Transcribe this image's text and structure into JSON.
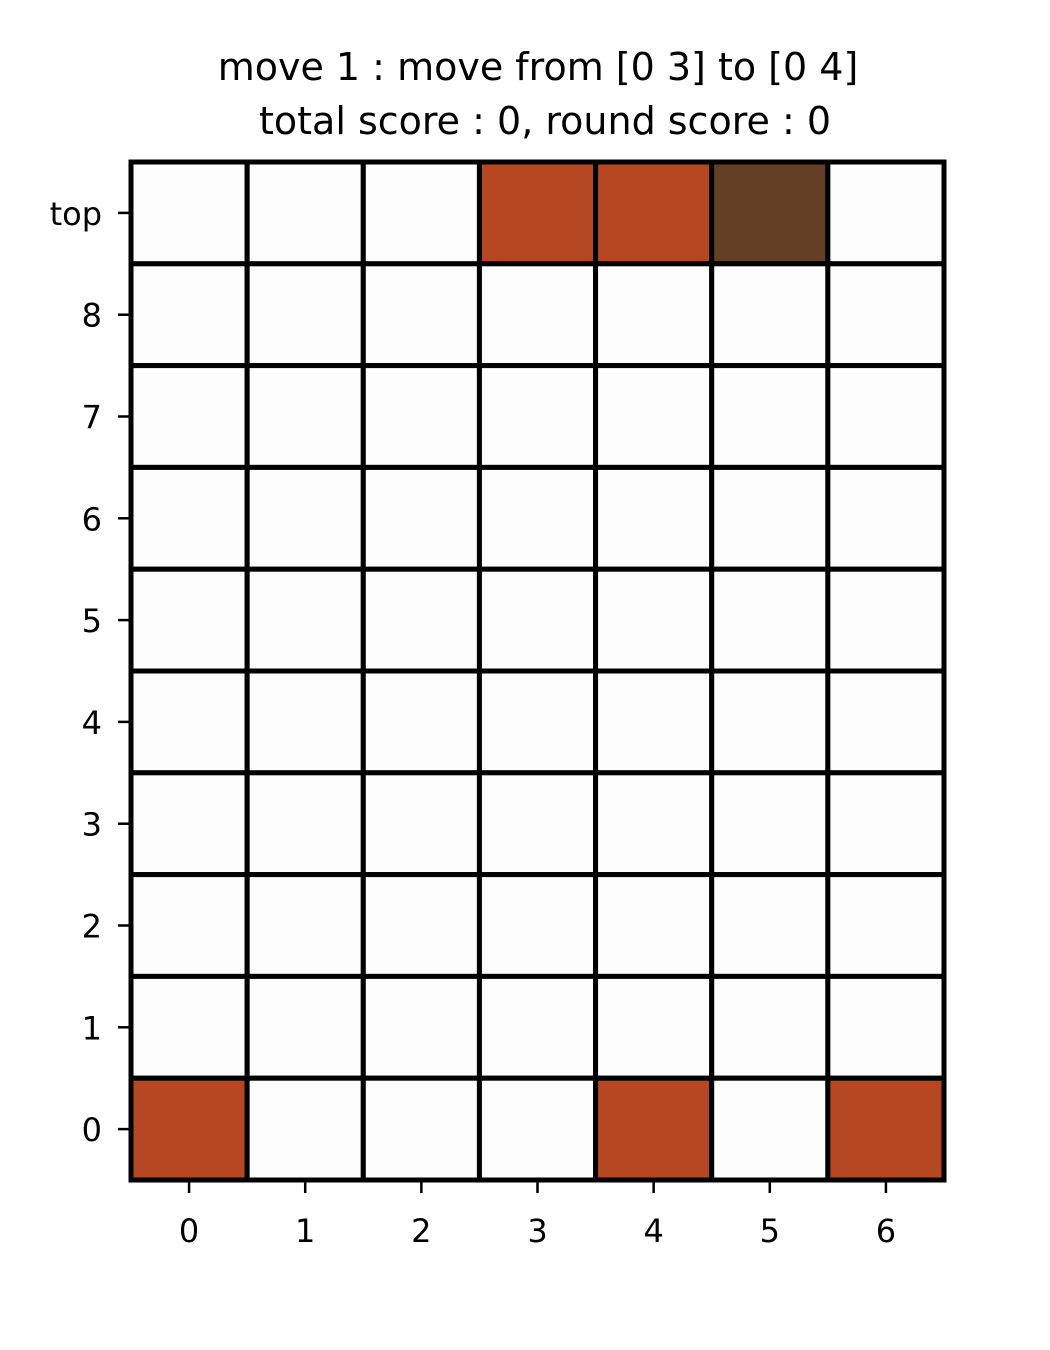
{
  "title": {
    "line1": "move 1 : move from [0 3] to [0 4]",
    "line2": "total score : 0, round score : 0"
  },
  "board": {
    "columns": [
      "0",
      "1",
      "2",
      "3",
      "4",
      "5",
      "6"
    ],
    "row_labels_top_to_bottom": [
      "top",
      "8",
      "7",
      "6",
      "5",
      "4",
      "3",
      "2",
      "1",
      "0"
    ],
    "grid_rows_top_to_bottom": [
      [
        ".",
        ".",
        ".",
        "R",
        "R",
        "B",
        "."
      ],
      [
        ".",
        ".",
        ".",
        ".",
        ".",
        ".",
        "."
      ],
      [
        ".",
        ".",
        ".",
        ".",
        ".",
        ".",
        "."
      ],
      [
        ".",
        ".",
        ".",
        ".",
        ".",
        ".",
        "."
      ],
      [
        ".",
        ".",
        ".",
        ".",
        ".",
        ".",
        "."
      ],
      [
        ".",
        ".",
        ".",
        ".",
        ".",
        ".",
        "."
      ],
      [
        ".",
        ".",
        ".",
        ".",
        ".",
        ".",
        "."
      ],
      [
        ".",
        ".",
        ".",
        ".",
        ".",
        ".",
        "."
      ],
      [
        ".",
        ".",
        ".",
        ".",
        ".",
        ".",
        "."
      ],
      [
        "R",
        ".",
        ".",
        ".",
        "R",
        ".",
        "R"
      ]
    ]
  },
  "colors": {
    "empty": "#fdfdfd",
    "R": "#b54823",
    "B": "#643f25",
    "grid_line": "#000000"
  }
}
